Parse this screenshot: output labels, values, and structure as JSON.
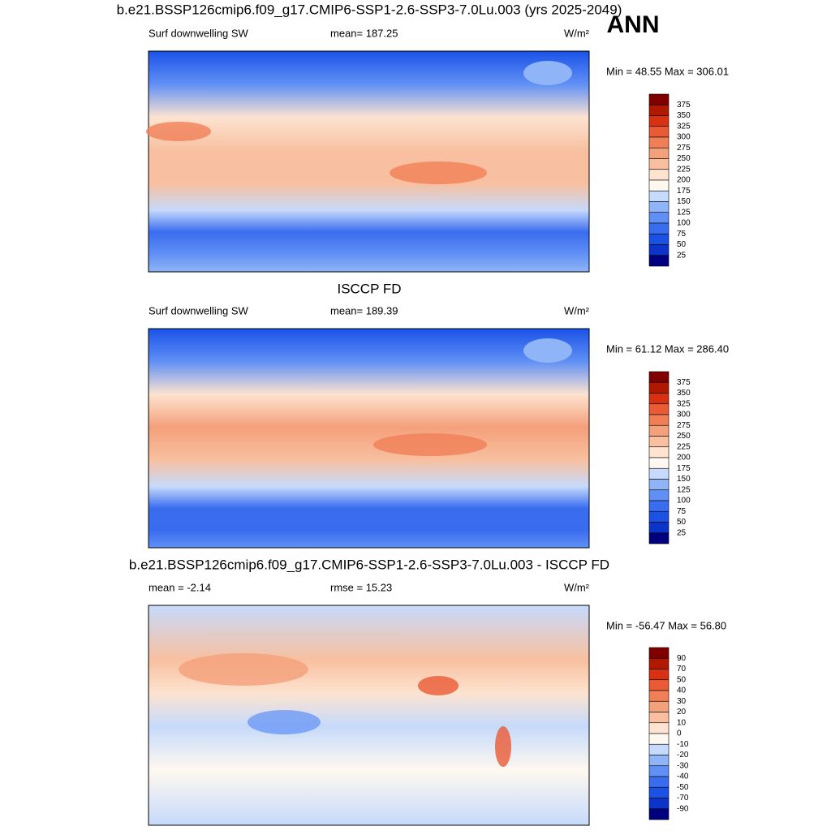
{
  "season": "ANN",
  "panels": [
    {
      "title": "b.e21.BSSP126cmip6.f09_g17.CMIP6-SSP1-2.6-SSP3-7.0Lu.003 (yrs 2025-2049)",
      "left": "Surf downwelling SW",
      "center": "mean= 187.25",
      "units": "W/m²",
      "stats": "Min =  48.55 Max = 306.01",
      "colorbar": {
        "levels": [
          375,
          350,
          325,
          300,
          275,
          250,
          225,
          200,
          175,
          150,
          125,
          100,
          75,
          50,
          25
        ],
        "colors": [
          "#800000",
          "#b01800",
          "#d83010",
          "#ea5a35",
          "#f07f58",
          "#f4a07a",
          "#f8c0a0",
          "#fde3d0",
          "#fff8f0",
          "#c6dafb",
          "#90b4f8",
          "#6090f5",
          "#3a6cf0",
          "#1a52e8",
          "#0d34c8",
          "#00007f"
        ]
      }
    },
    {
      "title": "ISCCP FD",
      "left": "Surf downwelling SW",
      "center": "mean= 189.39",
      "units": "W/m²",
      "stats": "Min =  61.12 Max = 286.40",
      "colorbar": {
        "levels": [
          375,
          350,
          325,
          300,
          275,
          250,
          225,
          200,
          175,
          150,
          125,
          100,
          75,
          50,
          25
        ],
        "colors": [
          "#800000",
          "#b01800",
          "#d83010",
          "#ea5a35",
          "#f07f58",
          "#f4a07a",
          "#f8c0a0",
          "#fde3d0",
          "#fff8f0",
          "#c6dafb",
          "#90b4f8",
          "#6090f5",
          "#3a6cf0",
          "#1a52e8",
          "#0d34c8",
          "#00007f"
        ]
      }
    },
    {
      "title": "b.e21.BSSP126cmip6.f09_g17.CMIP6-SSP1-2.6-SSP3-7.0Lu.003 - ISCCP FD",
      "left": "mean =  -2.14",
      "center": "rmse =  15.23",
      "units": "W/m²",
      "stats": "Min = -56.47 Max =  56.80",
      "colorbar": {
        "levels": [
          90,
          70,
          50,
          40,
          30,
          20,
          10,
          0,
          -10,
          -20,
          -30,
          -40,
          -50,
          -70,
          -90
        ],
        "colors": [
          "#800000",
          "#b01800",
          "#d83010",
          "#ea5a35",
          "#f07f58",
          "#f4a07a",
          "#f8c0a0",
          "#fde3d0",
          "#fff8f0",
          "#c6dafb",
          "#90b4f8",
          "#6090f5",
          "#3a6cf0",
          "#1a52e8",
          "#0d34c8",
          "#00007f"
        ]
      }
    }
  ]
}
